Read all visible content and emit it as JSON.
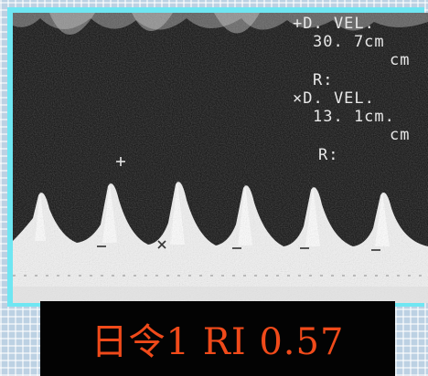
{
  "overlay": {
    "line1": "+D. VEL.",
    "line2": "30. 7cm",
    "line3": "cm",
    "line4": "R:",
    "line5": "×D. VEL.",
    "line6": "13. 1cm.",
    "line7": "cm",
    "line8": "R:"
  },
  "caption": {
    "text": "日令1 RI 0.57"
  },
  "colors": {
    "frame": "#6fe6f2",
    "caption_text": "#f04a1a",
    "caption_bg": "#030303",
    "overlay_text": "#e8e8e8"
  },
  "icons": {
    "marker_plus": "plus-marker-icon",
    "marker_x": "x-marker-icon"
  }
}
